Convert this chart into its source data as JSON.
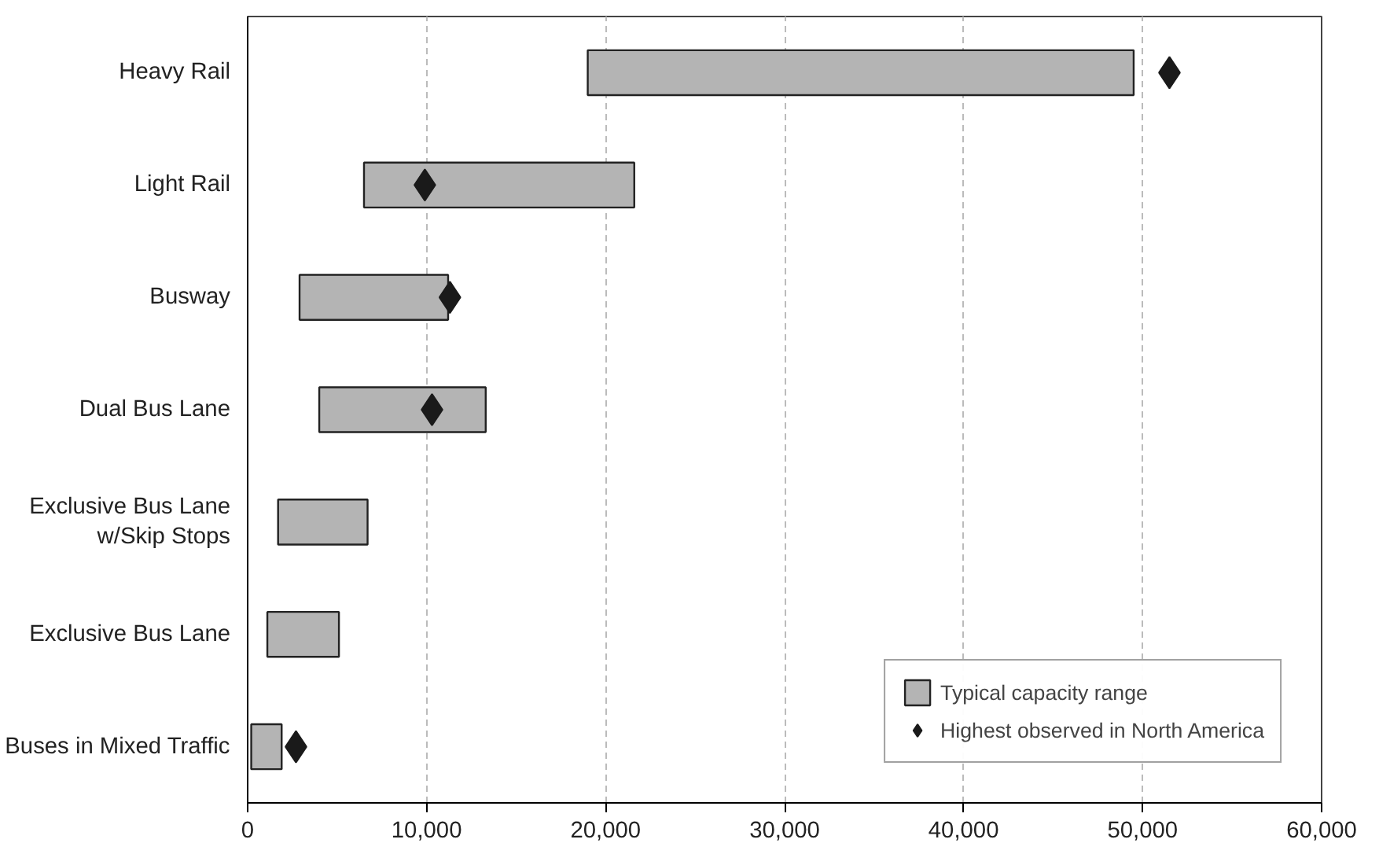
{
  "chart_data": {
    "type": "bar",
    "orientation": "horizontal",
    "categories": [
      "Heavy Rail",
      "Light Rail",
      "Busway",
      "Dual Bus Lane",
      "Exclusive Bus Lane\nw/Skip Stops",
      "Exclusive Bus Lane",
      "Buses in Mixed Traffic"
    ],
    "xlim": [
      0,
      60000
    ],
    "xticks": [
      0,
      {
        "value": 10000,
        "label": "10,000"
      },
      {
        "value": 20000,
        "label": "20,000"
      },
      {
        "value": 30000,
        "label": "30,000"
      },
      {
        "value": 40000,
        "label": "40,000"
      },
      {
        "value": 50000,
        "label": "50,000"
      },
      {
        "value": 60000,
        "label": "60,000"
      }
    ],
    "grid": "x",
    "line_style": "dashed",
    "legend": "bottom right",
    "series": [
      {
        "name": "Typical capacity range",
        "color": "#b4b4b4",
        "base": [
          19000,
          6500,
          2900,
          4000,
          1700,
          1100,
          200
        ],
        "values": [
          30500,
          15100,
          8300,
          9300,
          5000,
          4000,
          1700
        ]
      },
      {
        "name": "Highest observed in North America",
        "type": "scatter",
        "marker": "diamond",
        "color": "#1a1a1a",
        "values": [
          51500,
          9900,
          11300,
          10300,
          null,
          null,
          2700
        ]
      }
    ]
  }
}
